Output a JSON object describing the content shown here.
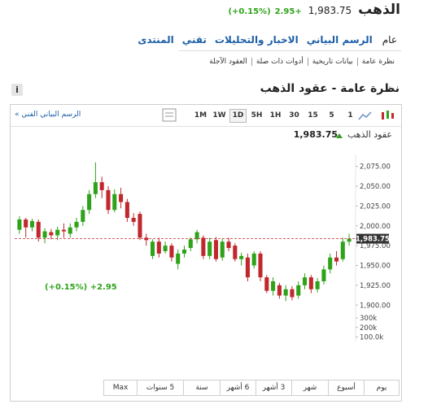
{
  "header": {
    "title": "الذهب",
    "price": "1,983.75",
    "change": "+2.95",
    "change_pct": "(+0.15%)"
  },
  "tabs": [
    "عام",
    "الرسم البياني",
    "الاخبار والتحليلات",
    "تقني",
    "المنتدى"
  ],
  "subnav": [
    "نظرة عامة",
    "بيانات تاريخية",
    "أدوات ذات صلة",
    "العقود الآجلة"
  ],
  "section_title": "نظرة عامة - عقود الذهب",
  "info_icon": "i",
  "toolbar": {
    "link": "الرسم البياني الفني »",
    "intervals": [
      "1M",
      "1W",
      "1D",
      "5H",
      "1H",
      "30",
      "15",
      "5",
      "1"
    ]
  },
  "ranges": [
    "يوم",
    "أسبوع",
    "شهر",
    "3 أشهر",
    "6 أشهر",
    "سنة",
    "5 سنوات",
    "Max"
  ],
  "chart_data": {
    "type": "candlestick",
    "title": "عقود الذهب",
    "last_value": 1983.75,
    "last_label": "1,983.75",
    "change_label": "(+0.15%) +2.95",
    "up_color": "#2ea31a",
    "down_color": "#c0282d",
    "open": [
      1995,
      2008,
      1998,
      2005,
      1985,
      1992,
      1988,
      1995,
      1990,
      1998,
      2005,
      2020,
      2040,
      2055,
      2045,
      2020,
      2040,
      2030,
      2010,
      2015,
      1985,
      1962,
      1980,
      1968,
      1975,
      1952,
      1965,
      1972,
      1983,
      1985,
      1962,
      1982,
      1960,
      1980,
      1975,
      1958,
      1960,
      1950,
      1965,
      1935,
      1918,
      1925,
      1912,
      1920,
      1912,
      1925,
      1935,
      1920,
      1930,
      1945,
      1960,
      1958,
      1980
    ],
    "high": [
      2012,
      2010,
      2009,
      2008,
      1997,
      1996,
      1999,
      2003,
      2003,
      2010,
      2025,
      2045,
      2080,
      2062,
      2050,
      2046,
      2048,
      2034,
      2016,
      2018,
      1990,
      1983,
      1985,
      1980,
      1978,
      1970,
      1975,
      1985,
      1995,
      1988,
      1985,
      1986,
      1984,
      1985,
      1978,
      1966,
      1965,
      1968,
      1968,
      1938,
      1935,
      1928,
      1925,
      1924,
      1930,
      1940,
      1938,
      1934,
      1950,
      1965,
      1968,
      1985,
      1990
    ],
    "low": [
      1990,
      1985,
      1993,
      1980,
      1978,
      1983,
      1982,
      1985,
      1985,
      1993,
      2000,
      2015,
      2035,
      2035,
      2015,
      2017,
      2022,
      2005,
      2000,
      1982,
      1975,
      1958,
      1960,
      1965,
      1955,
      1945,
      1960,
      1968,
      1978,
      1958,
      1958,
      1955,
      1956,
      1968,
      1955,
      1950,
      1930,
      1946,
      1930,
      1915,
      1912,
      1908,
      1905,
      1906,
      1908,
      1920,
      1915,
      1916,
      1926,
      1940,
      1950,
      1955,
      1975
    ],
    "close": [
      2008,
      1998,
      2006,
      1985,
      1993,
      1988,
      1995,
      1993,
      1998,
      2005,
      2020,
      2040,
      2055,
      2045,
      2020,
      2040,
      2030,
      2010,
      2005,
      1985,
      1982,
      1980,
      1965,
      1975,
      1960,
      1965,
      1970,
      1983,
      1992,
      1962,
      1980,
      1958,
      1980,
      1972,
      1958,
      1962,
      1935,
      1965,
      1935,
      1918,
      1930,
      1912,
      1920,
      1910,
      1925,
      1935,
      1920,
      1930,
      1945,
      1960,
      1955,
      1980,
      1983.75
    ],
    "ylim": [
      1890,
      2090
    ],
    "yticks": [
      {
        "value": 1900,
        "label": "1,900.00"
      },
      {
        "value": 1925,
        "label": "1,925.00"
      },
      {
        "value": 1950,
        "label": "1,950.00"
      },
      {
        "value": 1975,
        "label": "1,975.00"
      },
      {
        "value": 2000,
        "label": "2,000.00"
      },
      {
        "value": 2025,
        "label": "2,025.00"
      },
      {
        "value": 2050,
        "label": "2,050.00"
      },
      {
        "value": 2075,
        "label": "2,075.00"
      }
    ],
    "y2lim": [
      0,
      370000
    ],
    "y2ticks": [
      {
        "value": 300000,
        "label": "300k"
      },
      {
        "value": 200000,
        "label": "200k"
      },
      {
        "value": 100000,
        "label": "100.0k"
      }
    ],
    "grid": false
  }
}
